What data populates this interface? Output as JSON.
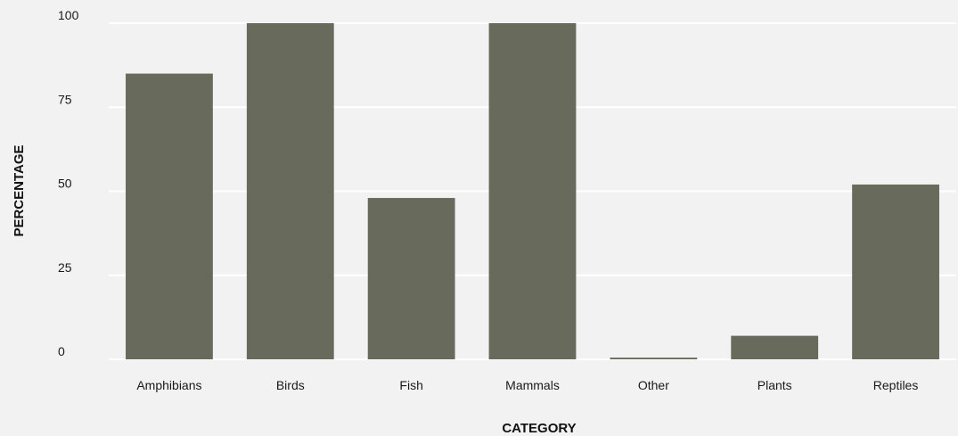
{
  "colors": {
    "background": "#f2f2f2",
    "bar": "#686b5c",
    "grid": "#ffffff",
    "text": "#1a1a1a"
  },
  "chart_data": {
    "type": "bar",
    "title": "",
    "xlabel": "CATEGORY",
    "ylabel": "PERCENTAGE",
    "categories": [
      "Amphibians",
      "Birds",
      "Fish",
      "Mammals",
      "Other",
      "Plants",
      "Reptiles"
    ],
    "values": [
      85,
      100,
      48,
      100,
      0.5,
      7,
      52
    ],
    "ylim": [
      0,
      100
    ],
    "yticks": [
      "0",
      "25",
      "50",
      "75",
      "100"
    ],
    "grid": true,
    "legend": "none"
  }
}
